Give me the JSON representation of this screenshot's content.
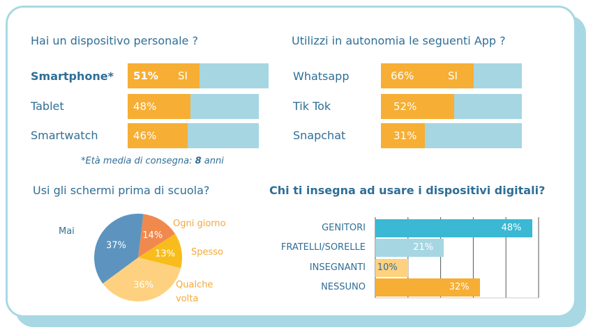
{
  "colors": {
    "frame": "#a8d8e4",
    "text_blue": "#2f6e96",
    "bar_bg": "#a6d6e2",
    "bar_fill": "#f6ae34"
  },
  "personal_device": {
    "title": "Hai un dispositivo personale ?",
    "rows": [
      {
        "label": "Smartphone*",
        "value": 51,
        "value_label": "51%",
        "answer": "SI"
      },
      {
        "label": "Tablet",
        "value": 48,
        "value_label": "48%"
      },
      {
        "label": "Smartwatch",
        "value": 46,
        "value_label": "46%"
      }
    ],
    "note_prefix": "*Età media di consegna: ",
    "note_value": "8",
    "note_suffix": " anni"
  },
  "apps": {
    "title": "Utilizzi in autonomia le seguenti App  ?",
    "rows": [
      {
        "label": "Whatsapp",
        "value": 66,
        "value_label": "66%",
        "answer": "SI"
      },
      {
        "label": "Tik Tok",
        "value": 52,
        "value_label": "52%"
      },
      {
        "label": "Snapchat",
        "value": 31,
        "value_label": "31%"
      }
    ]
  },
  "chart_data": [
    {
      "type": "pie",
      "title": "Usi gli schermi prima di scuola?",
      "slices": [
        {
          "name": "Ogni giorno",
          "value": 14,
          "value_label": "14%",
          "color": "#f0894e"
        },
        {
          "name": "Spesso",
          "value": 13,
          "value_label": "13%",
          "color": "#f8bd1d"
        },
        {
          "name": "Qualche volta",
          "value": 36,
          "value_label": "36%",
          "color": "#fdd180"
        },
        {
          "name": "Mai",
          "value": 37,
          "value_label": "37%",
          "color": "#5c94bf"
        }
      ],
      "label_color": "#f2a83a",
      "mai_color": "#2f6e96"
    },
    {
      "type": "bar",
      "orientation": "horizontal",
      "title": "Chi ti insegna ad usare i dispositivi digitali?",
      "categories": [
        "GENITORI",
        "FRATELLI/SORELLE",
        "INSEGNANTI",
        "NESSUNO"
      ],
      "values": [
        48,
        21,
        10,
        32
      ],
      "value_labels": [
        "48%",
        "21%",
        "10%",
        "32%"
      ],
      "colors": [
        "#3ab8d4",
        "#a6d6e2",
        "#fdd180",
        "#f6ae34"
      ],
      "xlim": [
        0,
        50
      ],
      "grid": true
    }
  ]
}
